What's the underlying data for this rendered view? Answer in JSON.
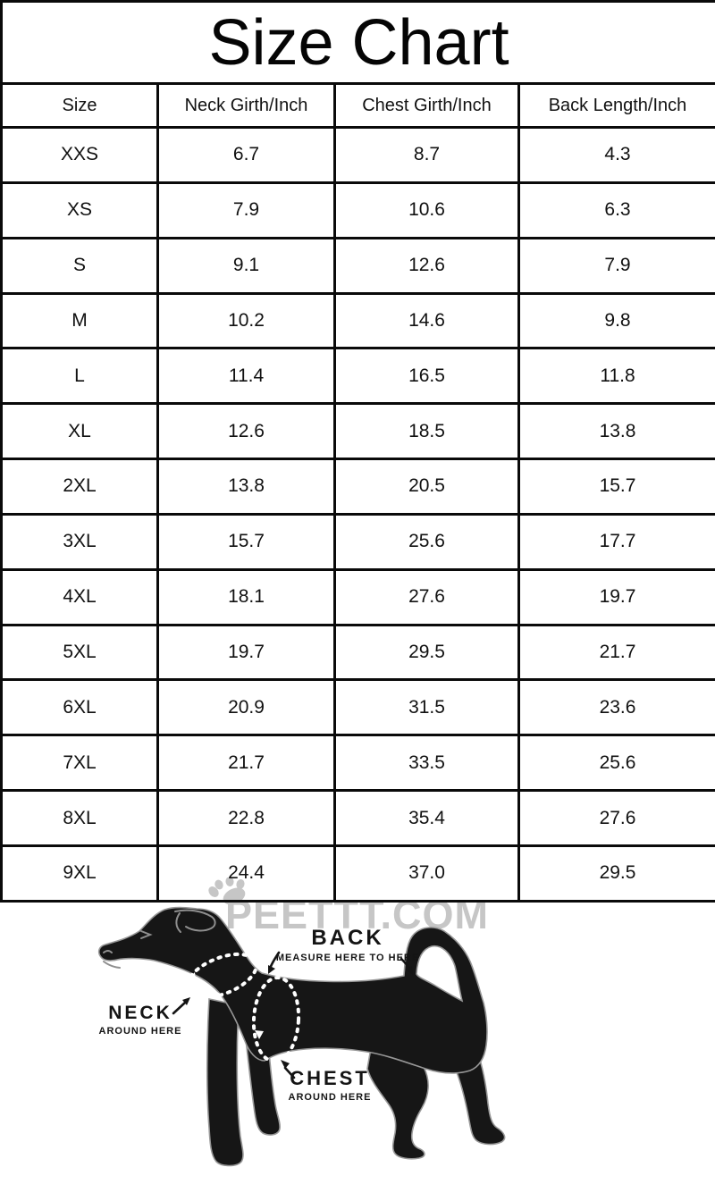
{
  "title": "Size Chart",
  "table": {
    "columns": [
      "Size",
      "Neck Girth/Inch",
      "Chest Girth/Inch",
      "Back Length/Inch"
    ],
    "rows": [
      [
        "XXS",
        "6.7",
        "8.7",
        "4.3"
      ],
      [
        "XS",
        "7.9",
        "10.6",
        "6.3"
      ],
      [
        "S",
        "9.1",
        "12.6",
        "7.9"
      ],
      [
        "M",
        "10.2",
        "14.6",
        "9.8"
      ],
      [
        "L",
        "11.4",
        "16.5",
        "11.8"
      ],
      [
        "XL",
        "12.6",
        "18.5",
        "13.8"
      ],
      [
        "2XL",
        "13.8",
        "20.5",
        "15.7"
      ],
      [
        "3XL",
        "15.7",
        "25.6",
        "17.7"
      ],
      [
        "4XL",
        "18.1",
        "27.6",
        "19.7"
      ],
      [
        "5XL",
        "19.7",
        "29.5",
        "21.7"
      ],
      [
        "6XL",
        "20.9",
        "31.5",
        "23.6"
      ],
      [
        "7XL",
        "21.7",
        "33.5",
        "25.6"
      ],
      [
        "8XL",
        "22.8",
        "35.4",
        "27.6"
      ],
      [
        "9XL",
        "24.4",
        "37.0",
        "29.5"
      ]
    ]
  },
  "chart_data": {
    "type": "table",
    "title": "Size Chart",
    "columns": [
      "Size",
      "Neck Girth/Inch",
      "Chest Girth/Inch",
      "Back Length/Inch"
    ],
    "rows": [
      [
        "XXS",
        6.7,
        8.7,
        4.3
      ],
      [
        "XS",
        7.9,
        10.6,
        6.3
      ],
      [
        "S",
        9.1,
        12.6,
        7.9
      ],
      [
        "M",
        10.2,
        14.6,
        9.8
      ],
      [
        "L",
        11.4,
        16.5,
        11.8
      ],
      [
        "XL",
        12.6,
        18.5,
        13.8
      ],
      [
        "2XL",
        13.8,
        20.5,
        15.7
      ],
      [
        "3XL",
        15.7,
        25.6,
        17.7
      ],
      [
        "4XL",
        18.1,
        27.6,
        19.7
      ],
      [
        "5XL",
        19.7,
        29.5,
        21.7
      ],
      [
        "6XL",
        20.9,
        31.5,
        23.6
      ],
      [
        "7XL",
        21.7,
        33.5,
        25.6
      ],
      [
        "8XL",
        22.8,
        35.4,
        27.6
      ],
      [
        "9XL",
        24.4,
        37.0,
        29.5
      ]
    ],
    "units": "inch"
  },
  "watermark": {
    "text": "PEETTT.COM",
    "icon": "paw-icon",
    "color": "#c6c6c6"
  },
  "diagram": {
    "back": {
      "label": "BACK",
      "sub": "MEASURE HERE TO HERE"
    },
    "neck": {
      "label": "NECK",
      "sub": "AROUND HERE"
    },
    "chest": {
      "label": "CHEST",
      "sub": "AROUND HERE"
    }
  },
  "colors": {
    "table_border": "#0a0a0a",
    "text": "#111111",
    "dog_fill": "#161616",
    "dog_outline": "#979797",
    "watermark_gray": "#c6c6c6"
  }
}
